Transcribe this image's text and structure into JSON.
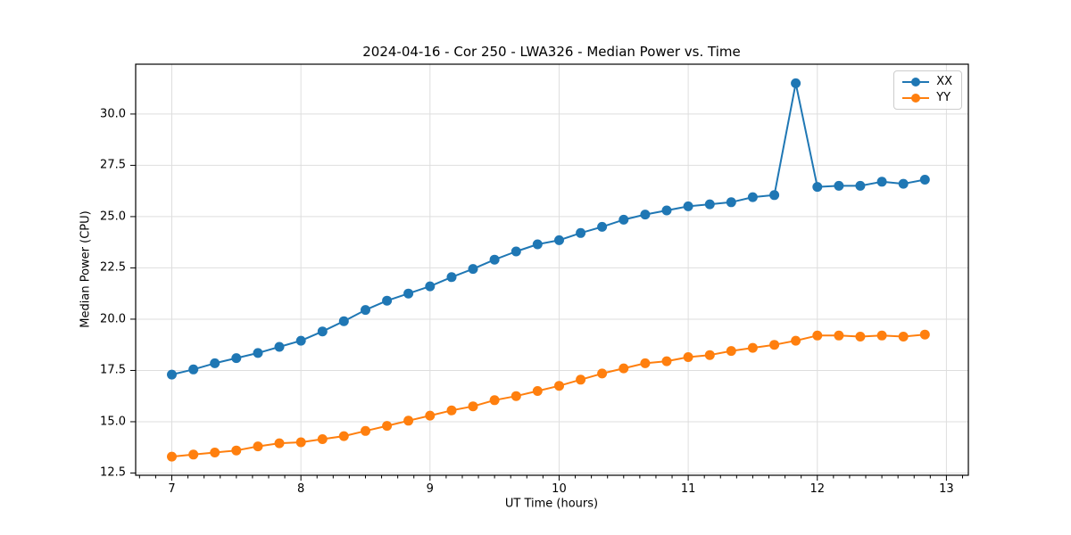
{
  "chart_data": {
    "type": "line",
    "title": "2024-04-16 - Cor 250 - LWA326 - Median Power vs. Time",
    "xlabel": "UT Time (hours)",
    "ylabel": "Median Power (CPU)",
    "xlim": [
      6.72,
      13.17
    ],
    "ylim": [
      12.39,
      32.43
    ],
    "x_ticks": [
      7,
      8,
      9,
      10,
      11,
      12,
      13
    ],
    "x_minor_tick_step": 0.125,
    "y_ticks": [
      12.5,
      15.0,
      17.5,
      20.0,
      22.5,
      25.0,
      27.5,
      30.0
    ],
    "grid": true,
    "legend_position": "upper right",
    "colors": {
      "grid": "#dedede",
      "spine": "#000000",
      "xx": "#1f77b4",
      "yy": "#ff7f0e"
    },
    "x": [
      7.0,
      7.167,
      7.333,
      7.5,
      7.667,
      7.833,
      8.0,
      8.167,
      8.333,
      8.5,
      8.667,
      8.833,
      9.0,
      9.167,
      9.333,
      9.5,
      9.667,
      9.833,
      10.0,
      10.167,
      10.333,
      10.5,
      10.667,
      10.833,
      11.0,
      11.167,
      11.333,
      11.5,
      11.667,
      11.833,
      12.0,
      12.167,
      12.333,
      12.5,
      12.667,
      12.833
    ],
    "series": [
      {
        "name": "XX",
        "color": "#1f77b4",
        "values": [
          17.3,
          17.55,
          17.85,
          18.1,
          18.35,
          18.65,
          18.95,
          19.4,
          19.9,
          20.45,
          20.9,
          21.25,
          21.6,
          22.05,
          22.45,
          22.9,
          23.3,
          23.65,
          23.85,
          24.2,
          24.5,
          24.85,
          25.1,
          25.3,
          25.5,
          25.6,
          25.7,
          25.95,
          26.05,
          31.5,
          26.45,
          26.5,
          26.5,
          26.7,
          26.6,
          26.8
        ]
      },
      {
        "name": "YY",
        "color": "#ff7f0e",
        "values": [
          13.3,
          13.4,
          13.5,
          13.6,
          13.8,
          13.95,
          14.0,
          14.15,
          14.3,
          14.55,
          14.8,
          15.05,
          15.3,
          15.55,
          15.75,
          16.05,
          16.25,
          16.5,
          16.75,
          17.05,
          17.35,
          17.6,
          17.85,
          17.95,
          18.15,
          18.25,
          18.45,
          18.6,
          18.75,
          18.95,
          19.2,
          19.2,
          19.15,
          19.2,
          19.15,
          19.25
        ]
      }
    ]
  }
}
